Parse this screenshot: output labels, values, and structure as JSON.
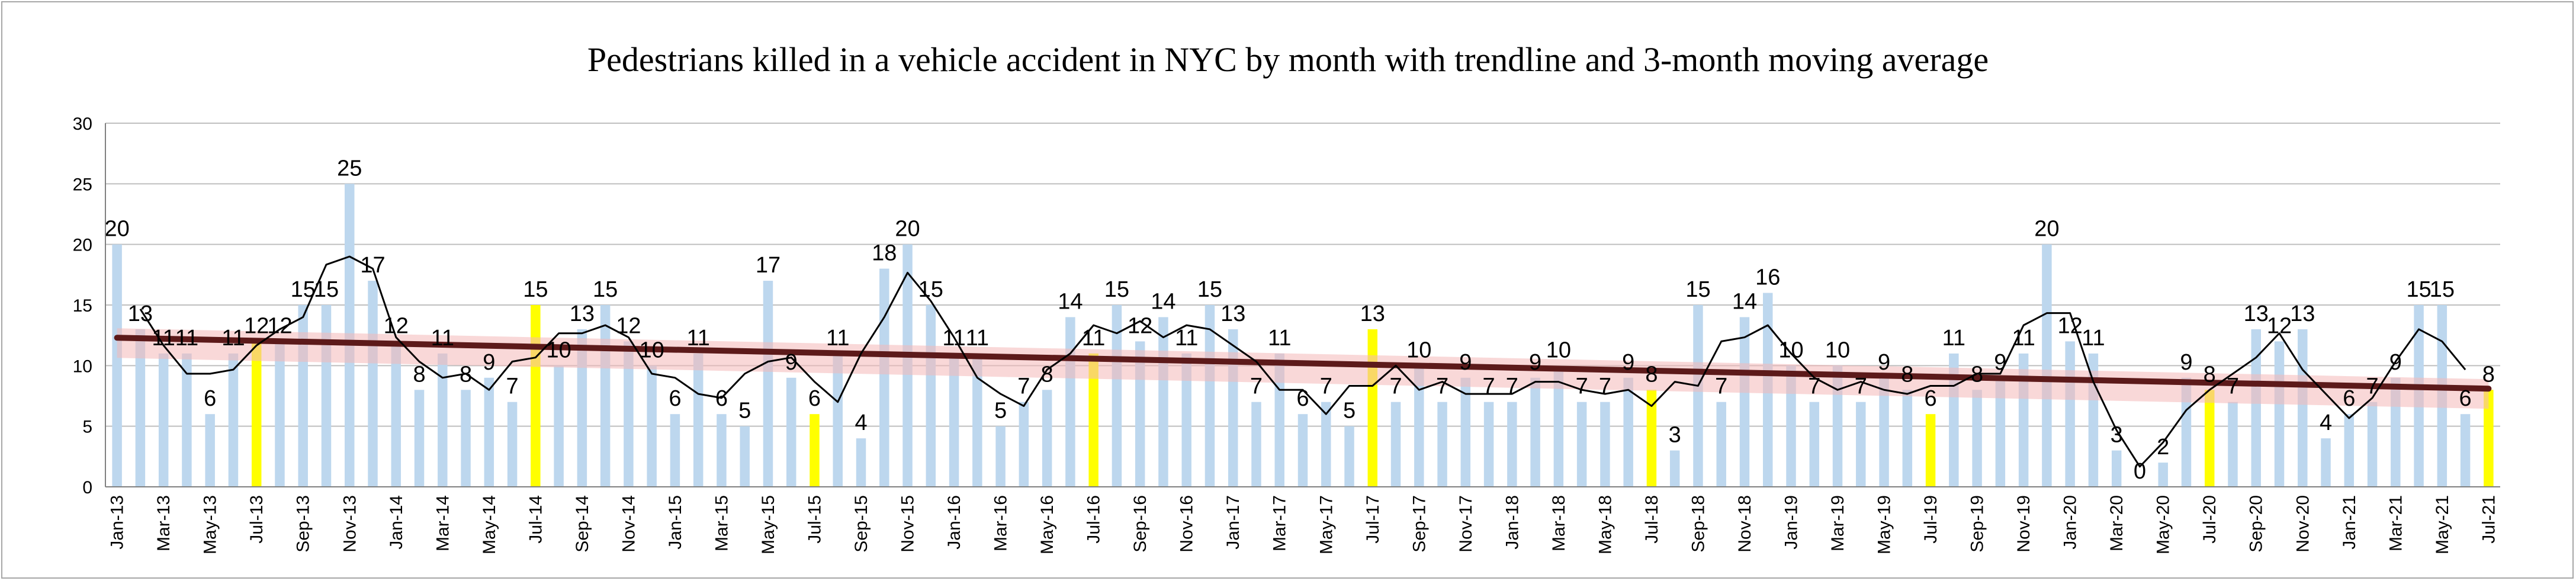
{
  "chart_data": {
    "type": "bar",
    "title": "Pedestrians killed in a vehicle accident  in NYC  by month with trendline and 3-month moving average",
    "xlabel": "",
    "ylabel": "",
    "ylim": [
      0,
      30
    ],
    "yticks": [
      0,
      5,
      10,
      15,
      20,
      25,
      30
    ],
    "grid": true,
    "categories": [
      "Jan-13",
      "Feb-13",
      "Mar-13",
      "Apr-13",
      "May-13",
      "Jun-13",
      "Jul-13",
      "Aug-13",
      "Sep-13",
      "Oct-13",
      "Nov-13",
      "Dec-13",
      "Jan-14",
      "Feb-14",
      "Mar-14",
      "Apr-14",
      "May-14",
      "Jun-14",
      "Jul-14",
      "Aug-14",
      "Sep-14",
      "Oct-14",
      "Nov-14",
      "Dec-14",
      "Jan-15",
      "Feb-15",
      "Mar-15",
      "Apr-15",
      "May-15",
      "Jun-15",
      "Jul-15",
      "Aug-15",
      "Sep-15",
      "Oct-15",
      "Nov-15",
      "Dec-15",
      "Jan-16",
      "Feb-16",
      "Mar-16",
      "Apr-16",
      "May-16",
      "Jun-16",
      "Jul-16",
      "Aug-16",
      "Sep-16",
      "Oct-16",
      "Nov-16",
      "Dec-16",
      "Jan-17",
      "Feb-17",
      "Mar-17",
      "Apr-17",
      "May-17",
      "Jun-17",
      "Jul-17",
      "Aug-17",
      "Sep-17",
      "Oct-17",
      "Nov-17",
      "Dec-17",
      "Jan-18",
      "Feb-18",
      "Mar-18",
      "Apr-18",
      "May-18",
      "Jun-18",
      "Jul-18",
      "Aug-18",
      "Sep-18",
      "Oct-18",
      "Nov-18",
      "Dec-18",
      "Jan-19",
      "Feb-19",
      "Mar-19",
      "Apr-19",
      "May-19",
      "Jun-19",
      "Jul-19",
      "Aug-19",
      "Sep-19",
      "Oct-19",
      "Nov-19",
      "Dec-19",
      "Jan-20",
      "Feb-20",
      "Mar-20",
      "Apr-20",
      "May-20",
      "Jun-20",
      "Jul-20",
      "Aug-20",
      "Sep-20",
      "Oct-20",
      "Nov-20",
      "Dec-20",
      "Jan-21",
      "Feb-21",
      "Mar-21",
      "Apr-21",
      "May-21",
      "Jun-21",
      "Jul-21"
    ],
    "tick_labels": [
      "Jan-13",
      "Mar-13",
      "May-13",
      "Jul-13",
      "Sep-13",
      "Nov-13",
      "Jan-14",
      "Mar-14",
      "May-14",
      "Jul-14",
      "Sep-14",
      "Nov-14",
      "Jan-15",
      "Mar-15",
      "May-15",
      "Jul-15",
      "Sep-15",
      "Nov-15",
      "Jan-16",
      "Mar-16",
      "May-16",
      "Jul-16",
      "Sep-16",
      "Nov-16",
      "Jan-17",
      "Mar-17",
      "May-17",
      "Jul-17",
      "Sep-17",
      "Nov-17",
      "Jan-18",
      "Mar-18",
      "May-18",
      "Jul-18",
      "Sep-18",
      "Nov-18",
      "Jan-19",
      "Mar-19",
      "May-19",
      "Jul-19",
      "Sep-19",
      "Nov-19",
      "Jan-20",
      "Mar-20",
      "May-20",
      "Jul-20",
      "Sep-20",
      "Nov-20",
      "Jan-21",
      "Mar-21",
      "May-21",
      "Jul-21"
    ],
    "series": [
      {
        "values": [
          20,
          13,
          11,
          11,
          6,
          11,
          12,
          12,
          15,
          15,
          25,
          17,
          12,
          8,
          11,
          8,
          9,
          7,
          15,
          10,
          13,
          15,
          12,
          10,
          6,
          11,
          6,
          5,
          17,
          9,
          6,
          11,
          4,
          18,
          20,
          15,
          11,
          11,
          5,
          7,
          8,
          14,
          11,
          15,
          12,
          14,
          11,
          15,
          13,
          7,
          11,
          6,
          7,
          5,
          13,
          7,
          10,
          7,
          9,
          7,
          7,
          9,
          10,
          7,
          7,
          9,
          8,
          3,
          15,
          7,
          14,
          16,
          10,
          7,
          10,
          7,
          9,
          8,
          6,
          11,
          8,
          9,
          11,
          20,
          12,
          11,
          3,
          0,
          2,
          9,
          8,
          7,
          13,
          12,
          13,
          4,
          6,
          7,
          9,
          15,
          15,
          6,
          8
        ],
        "color": "#bdd7ee",
        "highlight_color": "#ffff00"
      },
      {
        "name": "",
        "kind": "moving_average",
        "color": "#000000"
      },
      {
        "name": "",
        "kind": "linear_trendline",
        "start": 12.3,
        "end": 8.1,
        "color": "#5c1a1a",
        "band_color": "#f4b8b8"
      }
    ],
    "highlighted_categories": [
      "Jul-13",
      "Jul-14",
      "Jul-15",
      "Jul-16",
      "Jul-17",
      "Jul-18",
      "Jul-19",
      "Jul-20",
      "Jul-21"
    ]
  }
}
